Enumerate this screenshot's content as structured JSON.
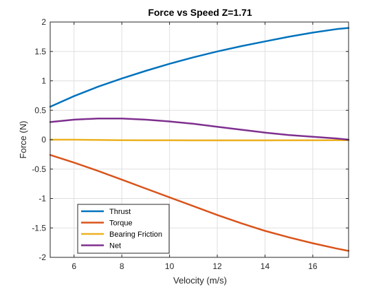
{
  "chart_data": {
    "type": "line",
    "title": "Force vs Speed Z=1.71",
    "xlabel": "Velocity (m/s)",
    "ylabel": "Force (N)",
    "xlim": [
      5,
      17.5
    ],
    "ylim": [
      -2,
      2
    ],
    "xticks": [
      6,
      8,
      10,
      12,
      14,
      16
    ],
    "yticks": [
      -2,
      -1.5,
      -1,
      -0.5,
      0,
      0.5,
      1,
      1.5,
      2
    ],
    "grid": true,
    "legend_position": "bottom-left",
    "x": [
      5,
      6,
      7,
      8,
      9,
      10,
      11,
      12,
      13,
      14,
      15,
      16,
      17,
      17.5
    ],
    "series": [
      {
        "name": "Thrust",
        "color": "#0072BD",
        "values": [
          0.56,
          0.74,
          0.9,
          1.04,
          1.17,
          1.29,
          1.4,
          1.5,
          1.59,
          1.67,
          1.75,
          1.82,
          1.88,
          1.9
        ]
      },
      {
        "name": "Torque",
        "color": "#D95319",
        "values": [
          -0.26,
          -0.39,
          -0.53,
          -0.68,
          -0.83,
          -0.98,
          -1.13,
          -1.28,
          -1.42,
          -1.55,
          -1.66,
          -1.76,
          -1.85,
          -1.89
        ]
      },
      {
        "name": "Bearing Friction",
        "color": "#EDB120",
        "values": [
          0.0,
          0.0,
          -0.005,
          -0.008,
          -0.01,
          -0.01,
          -0.012,
          -0.012,
          -0.012,
          -0.012,
          -0.01,
          -0.01,
          -0.008,
          -0.008
        ]
      },
      {
        "name": "Net",
        "color": "#7E2F8E",
        "values": [
          0.3,
          0.34,
          0.36,
          0.36,
          0.34,
          0.31,
          0.27,
          0.22,
          0.17,
          0.12,
          0.08,
          0.05,
          0.02,
          0.0
        ]
      }
    ]
  }
}
